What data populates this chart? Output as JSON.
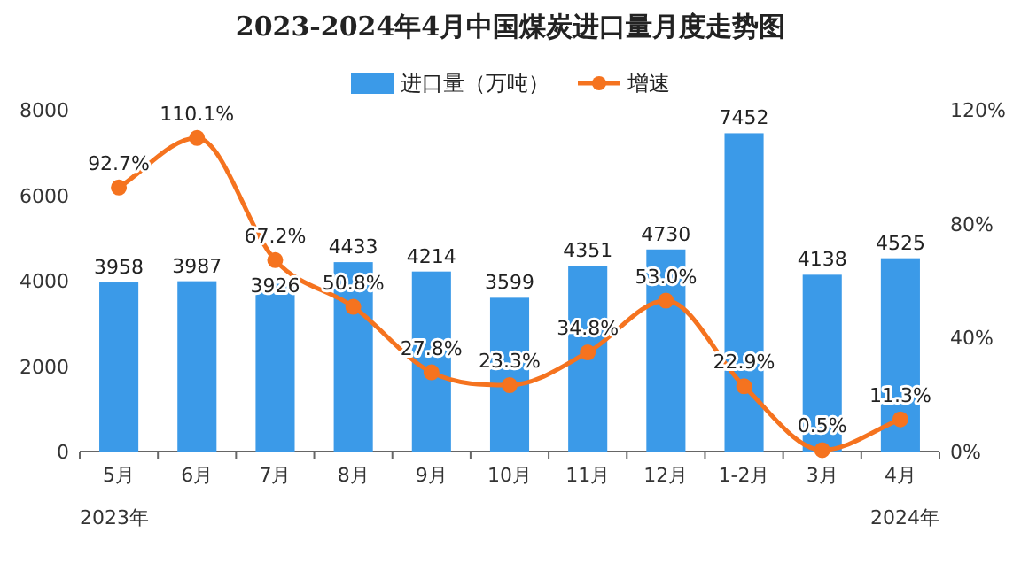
{
  "chart_data": {
    "type": "bar",
    "title": "2023-2024年4月中国煤炭进口量月度走势图",
    "categories": [
      "5月",
      "6月",
      "7月",
      "8月",
      "9月",
      "10月",
      "11月",
      "12月",
      "1-2月",
      "3月",
      "4月"
    ],
    "series": [
      {
        "name": "进口量（万吨）",
        "color": "#3b9ae8",
        "values": [
          3958,
          3987,
          3926,
          4433,
          4214,
          3599,
          4351,
          4730,
          7452,
          4138,
          4525
        ],
        "value_labels": [
          "3958",
          "3987",
          "3926",
          "4433",
          "4214",
          "3599",
          "4351",
          "4730",
          "7452",
          "4138",
          "4525"
        ]
      },
      {
        "name": "增速",
        "type": "line",
        "axis": "y2",
        "color": "#f5731f",
        "values": [
          92.7,
          110.1,
          67.2,
          50.8,
          27.8,
          23.3,
          34.8,
          53.0,
          22.9,
          0.5,
          11.3
        ],
        "value_labels": [
          "92.7%",
          "110.1%",
          "67.2%",
          "50.8%",
          "27.8%",
          "23.3%",
          "34.8%",
          "53.0%",
          "22.9%",
          "0.5%",
          "11.3%"
        ]
      }
    ],
    "ylim": [
      0,
      8000
    ],
    "yticks": [
      0,
      2000,
      4000,
      6000,
      8000
    ],
    "y2lim": [
      0,
      120
    ],
    "y2ticks": [
      {
        "value": 0,
        "label": "0%"
      },
      {
        "value": 40,
        "label": "40%"
      },
      {
        "value": 80,
        "label": "80%"
      },
      {
        "value": 120,
        "label": "120%"
      }
    ],
    "marker": "circle",
    "legend": "top",
    "annotations": [
      "2023年",
      "2024年"
    ]
  }
}
